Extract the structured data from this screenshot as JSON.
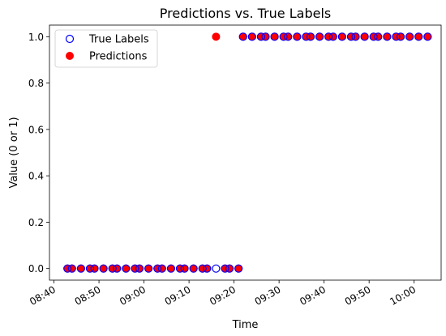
{
  "chart_data": {
    "type": "scatter",
    "title": "Predictions vs. True Labels",
    "xlabel": "Time",
    "ylabel": "Value (0 or 1)",
    "xlim": [
      "08:39",
      "10:06"
    ],
    "ylim": [
      -0.05,
      1.05
    ],
    "x_ticks": [
      "08:40",
      "08:50",
      "09:00",
      "09:10",
      "09:20",
      "09:30",
      "09:40",
      "09:50",
      "10:00"
    ],
    "y_ticks": [
      "0.0",
      "0.2",
      "0.4",
      "0.6",
      "0.8",
      "1.0"
    ],
    "x_tick_label_rotation_deg": 30,
    "grid": false,
    "legend_location": "upper left",
    "series": [
      {
        "name": "True Labels",
        "marker": "hollow-circle",
        "color": "#0000ff",
        "x": [
          "08:43",
          "08:44",
          "08:46",
          "08:48",
          "08:49",
          "08:51",
          "08:53",
          "08:54",
          "08:56",
          "08:58",
          "08:59",
          "09:01",
          "09:03",
          "09:04",
          "09:06",
          "09:08",
          "09:09",
          "09:11",
          "09:13",
          "09:14",
          "09:16",
          "09:18",
          "09:19",
          "09:21",
          "09:22",
          "09:24",
          "09:26",
          "09:27",
          "09:29",
          "09:31",
          "09:32",
          "09:34",
          "09:36",
          "09:37",
          "09:39",
          "09:41",
          "09:42",
          "09:44",
          "09:46",
          "09:47",
          "09:49",
          "09:51",
          "09:52",
          "09:54",
          "09:56",
          "09:57",
          "09:59",
          "10:01",
          "10:03"
        ],
        "y": [
          0,
          0,
          0,
          0,
          0,
          0,
          0,
          0,
          0,
          0,
          0,
          0,
          0,
          0,
          0,
          0,
          0,
          0,
          0,
          0,
          0,
          0,
          0,
          0,
          1,
          1,
          1,
          1,
          1,
          1,
          1,
          1,
          1,
          1,
          1,
          1,
          1,
          1,
          1,
          1,
          1,
          1,
          1,
          1,
          1,
          1,
          1,
          1,
          1
        ]
      },
      {
        "name": "Predictions",
        "marker": "filled-circle",
        "color": "#ff0000",
        "x": [
          "08:43",
          "08:44",
          "08:46",
          "08:48",
          "08:49",
          "08:51",
          "08:53",
          "08:54",
          "08:56",
          "08:58",
          "08:59",
          "09:01",
          "09:03",
          "09:04",
          "09:06",
          "09:08",
          "09:09",
          "09:11",
          "09:13",
          "09:14",
          "09:16",
          "09:18",
          "09:19",
          "09:21",
          "09:22",
          "09:24",
          "09:26",
          "09:27",
          "09:29",
          "09:31",
          "09:32",
          "09:34",
          "09:36",
          "09:37",
          "09:39",
          "09:41",
          "09:42",
          "09:44",
          "09:46",
          "09:47",
          "09:49",
          "09:51",
          "09:52",
          "09:54",
          "09:56",
          "09:57",
          "09:59",
          "10:01",
          "10:03"
        ],
        "y": [
          0,
          0,
          0,
          0,
          0,
          0,
          0,
          0,
          0,
          0,
          0,
          0,
          0,
          0,
          0,
          0,
          0,
          0,
          0,
          0,
          1,
          0,
          0,
          0,
          1,
          1,
          1,
          1,
          1,
          1,
          1,
          1,
          1,
          1,
          1,
          1,
          1,
          1,
          1,
          1,
          1,
          1,
          1,
          1,
          1,
          1,
          1,
          1,
          1
        ]
      }
    ]
  }
}
